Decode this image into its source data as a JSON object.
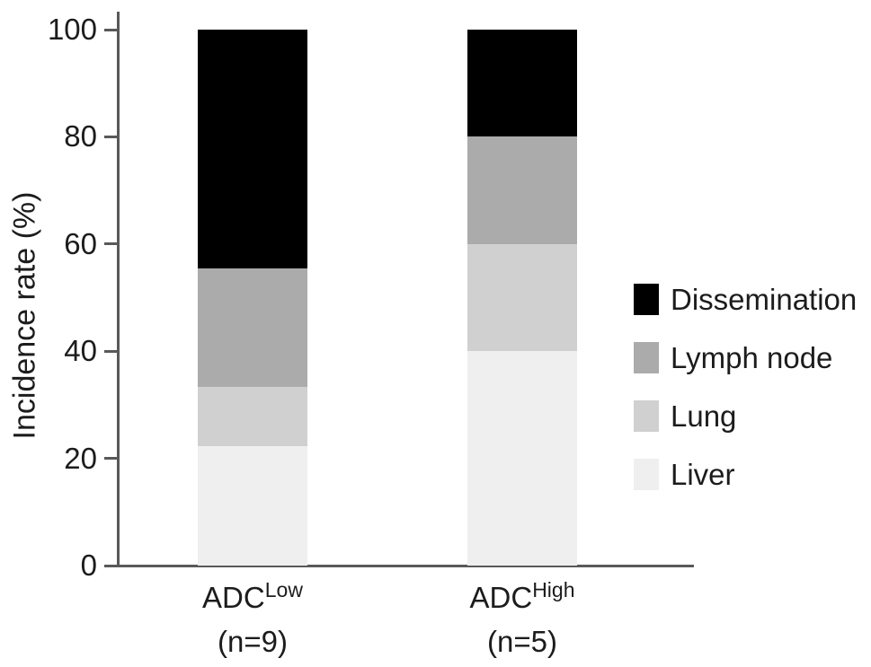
{
  "chart_data": {
    "type": "bar",
    "stacked": true,
    "title": "",
    "ylabel": "Incidence rate (%)",
    "xlabel": "",
    "ylim": [
      0,
      100
    ],
    "yticks": [
      0,
      20,
      40,
      60,
      80,
      100
    ],
    "grid": false,
    "categories": [
      {
        "base": "ADC",
        "sup": "Low",
        "sub_label": "(n=9)"
      },
      {
        "base": "ADC",
        "sup": "High",
        "sub_label": "(n=5)"
      }
    ],
    "series": [
      {
        "name": "Liver",
        "color": "#efefef",
        "values": [
          22.2,
          40.0
        ]
      },
      {
        "name": "Lung",
        "color": "#d0d0d0",
        "values": [
          11.1,
          20.0
        ]
      },
      {
        "name": "Lymph node",
        "color": "#ababab",
        "values": [
          22.2,
          20.0
        ]
      },
      {
        "name": "Dissemination",
        "color": "#000000",
        "values": [
          44.5,
          20.0
        ]
      }
    ],
    "legend": {
      "position": "right",
      "order": [
        "Dissemination",
        "Lymph node",
        "Lung",
        "Liver"
      ]
    }
  },
  "colors": {
    "axis": "#595959",
    "text": "#1c1c1c",
    "background": "#ffffff"
  }
}
